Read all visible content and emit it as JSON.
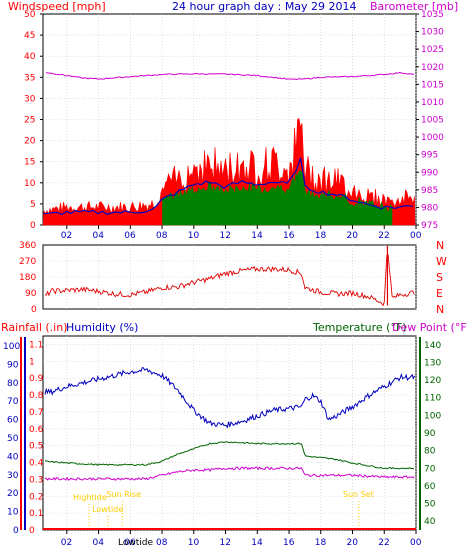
{
  "colors": {
    "wind": "#ff0000",
    "baro": "#d000d0",
    "title": "#0000c0",
    "gust_fill": "#ff0000",
    "avg_fill": "#008000",
    "avg_line": "#0000c0",
    "dir": "#e00000",
    "hum": "#0000c0",
    "temp": "#006400",
    "dew": "#d000d0",
    "tide": "#ffcc00",
    "rain": "#ff0000"
  },
  "top": {
    "title": "24 hour graph day : May 29 2014",
    "left_label": "Windspeed [mph]",
    "right_label": "Barometer [mb]"
  },
  "mid": {
    "compass": [
      "N",
      "W",
      "S",
      "E",
      "N"
    ]
  },
  "bottom": {
    "rain_label": "Rainfall (.in)",
    "hum_label": "Humidity (%)",
    "temp_label": "Temperature (°F)",
    "dew_label": "Dew Point (°F)"
  },
  "events": [
    {
      "label": "Hightide",
      "hour": 3.4
    },
    {
      "label": "Sun Rise",
      "hour": 5.5
    },
    {
      "label": "Lowtide",
      "hour": 4.6
    },
    {
      "label": "Sun Set",
      "hour": 20.4
    }
  ],
  "bottom_labels": [
    "Lowtide"
  ],
  "chart_data": [
    {
      "type": "line",
      "title": "24 hour graph day : May 29 2014",
      "x_ticks": [
        "02",
        "04",
        "06",
        "08",
        "10",
        "12",
        "14",
        "16",
        "18",
        "20",
        "22",
        "00"
      ],
      "x_range_hours": [
        0.5,
        24
      ],
      "y_left": {
        "label": "Windspeed [mph]",
        "ticks": [
          0,
          5,
          10,
          15,
          20,
          25,
          30,
          35,
          40,
          45,
          50
        ],
        "range": [
          0,
          50
        ]
      },
      "y_right": {
        "label": "Barometer [mb]",
        "ticks": [
          975,
          980,
          985,
          990,
          995,
          1000,
          1005,
          1010,
          1015,
          1020,
          1025,
          1030,
          1035
        ],
        "range": [
          975,
          1035
        ]
      },
      "series": [
        {
          "name": "Windspeed [mph]",
          "axis": "left",
          "x": [
            0.5,
            2,
            4,
            6,
            7.5,
            8,
            9,
            10,
            11,
            12,
            13,
            14,
            15,
            16,
            16.8,
            17,
            18,
            19,
            20,
            21,
            22,
            23,
            24
          ],
          "values": [
            4,
            5,
            5,
            5,
            6,
            10,
            13,
            16,
            17,
            15,
            17,
            16,
            17,
            16,
            27,
            15,
            13,
            12,
            10,
            8,
            7,
            7,
            8
          ]
        },
        {
          "name": "Barometer [mb]",
          "axis": "right",
          "x": [
            0.5,
            2,
            3,
            4,
            6,
            8,
            10,
            12,
            14,
            15,
            16,
            17,
            18,
            20,
            22,
            23,
            24
          ],
          "values": [
            1018.5,
            1017.5,
            1016.8,
            1016.5,
            1017.2,
            1017.8,
            1018,
            1017.9,
            1017.5,
            1017,
            1016.4,
            1016.5,
            1017,
            1017.2,
            1017.8,
            1018.3,
            1017.8
          ]
        }
      ],
      "ylim": [
        0,
        50
      ]
    },
    {
      "type": "line",
      "title": "",
      "x_range_hours": [
        0.5,
        24
      ],
      "y_left": {
        "ticks": [
          0,
          90,
          180,
          270,
          360
        ],
        "range": [
          0,
          360
        ]
      },
      "y_right": {
        "ticks": [
          "N",
          "W",
          "S",
          "E",
          "N"
        ]
      },
      "series": [
        {
          "x": [
            0.5,
            1,
            2,
            3,
            4,
            5,
            6,
            7,
            8,
            9,
            10,
            11,
            12,
            13,
            14,
            15,
            16,
            16.8,
            17,
            18,
            19,
            20,
            21,
            22,
            22.2,
            22.5,
            23,
            24
          ],
          "values": [
            60,
            100,
            105,
            110,
            100,
            85,
            80,
            95,
            120,
            125,
            150,
            170,
            200,
            215,
            225,
            225,
            220,
            200,
            120,
            95,
            85,
            90,
            70,
            30,
            360,
            60,
            80,
            95
          ]
        }
      ],
      "ylim": [
        0,
        360
      ]
    },
    {
      "type": "line",
      "title": "",
      "x_ticks": [
        "02",
        "04",
        "06",
        "08",
        "10",
        "12",
        "14",
        "16",
        "18",
        "20",
        "22",
        "00"
      ],
      "x_range_hours": [
        0.5,
        24
      ],
      "y_left": {
        "label": "Rainfall (.in)",
        "ticks": [
          0,
          0.1,
          0.2,
          0.3,
          0.4,
          0.5,
          0.6,
          0.7,
          0.8,
          0.9,
          1,
          1.1
        ],
        "range": [
          0,
          1.15
        ]
      },
      "y_left_inner": {
        "label": "Humidity (%)",
        "ticks": [
          0,
          10,
          20,
          30,
          40,
          50,
          60,
          70,
          80,
          90,
          100
        ],
        "range": [
          0,
          100
        ]
      },
      "y_right": {
        "label": "Temperature (°F)",
        "ticks": [
          40,
          50,
          60,
          70,
          80,
          90,
          100,
          110,
          120,
          130,
          140
        ],
        "range": [
          35,
          145
        ]
      },
      "series": [
        {
          "name": "Humidity (%)",
          "axis": "humidity",
          "x": [
            0.5,
            1,
            2,
            3,
            4,
            5,
            6,
            7,
            8,
            9,
            10,
            11,
            12,
            13,
            14,
            15,
            16,
            16.8,
            17,
            17.5,
            18,
            18.5,
            19,
            20,
            21,
            22,
            23,
            24
          ],
          "values": [
            75,
            75,
            78,
            80,
            82,
            84,
            86,
            87,
            84,
            76,
            65,
            58,
            57,
            59,
            62,
            65,
            66,
            67,
            71,
            73,
            70,
            60,
            62,
            67,
            73,
            78,
            83,
            83
          ]
        },
        {
          "name": "Temperature (°F)",
          "axis": "right",
          "x": [
            0.5,
            2,
            4,
            6,
            7,
            8,
            9,
            10,
            11,
            12,
            14,
            16,
            16.8,
            17,
            18,
            19,
            20,
            22,
            24
          ],
          "values": [
            74,
            73,
            72,
            72,
            72,
            74,
            78,
            81,
            84,
            85,
            84,
            84,
            84,
            77,
            76,
            75,
            73,
            70,
            70
          ]
        },
        {
          "name": "Dew Point (°F)",
          "axis": "right",
          "x": [
            0.5,
            2,
            4,
            6,
            7,
            8,
            9,
            10,
            11,
            12,
            14,
            16,
            16.8,
            17,
            18,
            20,
            22,
            24
          ],
          "values": [
            64,
            64,
            64,
            64,
            64,
            66,
            68,
            69,
            69,
            70,
            70,
            70,
            70,
            66,
            66,
            66,
            65,
            65
          ]
        },
        {
          "name": "Rainfall (.in)",
          "axis": "left",
          "x": [
            0.5,
            24
          ],
          "values": [
            0,
            0
          ]
        }
      ],
      "ylim": [
        0,
        1.15
      ]
    }
  ]
}
